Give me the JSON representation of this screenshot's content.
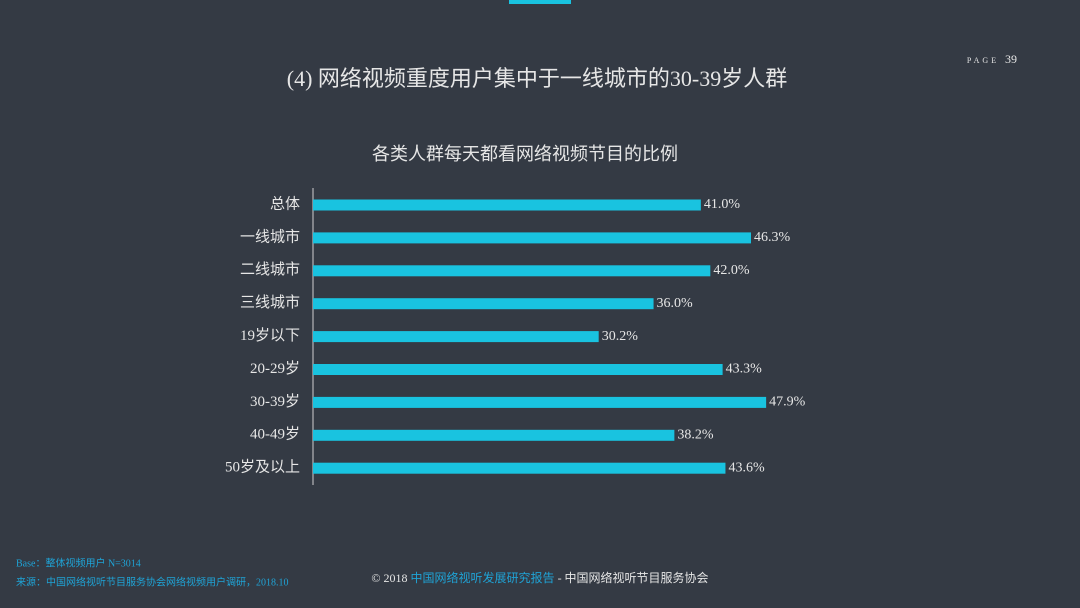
{
  "slide": {
    "heading": "(4) 网络视频重度用户集中于一线城市的30-39岁人群",
    "page_label": "PAGE",
    "page_number": "39",
    "base_note": "Base：整体视频用户   N=3014",
    "source_note": "来源：中国网络视听节目服务协会网络视频用户调研，2018.10",
    "footer_prefix": "© 2018 ",
    "footer_report": "中国网络视听发展研究报告",
    "footer_suffix": " - 中国网络视听节目服务协会"
  },
  "chart_data": {
    "type": "hbar",
    "title": "各类人群每天都看网络视频节目的比例",
    "categories": [
      "总体",
      "一线城市",
      "二线城市",
      "三线城市",
      "19岁以下",
      "20-29岁",
      "30-39岁",
      "40-49岁",
      "50岁及以上"
    ],
    "values": [
      41.0,
      46.3,
      42.0,
      36.0,
      30.2,
      43.3,
      47.9,
      38.2,
      43.6
    ],
    "value_labels": [
      "41.0%",
      "46.3%",
      "42.0%",
      "36.0%",
      "30.2%",
      "43.3%",
      "47.9%",
      "38.2%",
      "43.6%"
    ],
    "color": "#19c3e0"
  }
}
